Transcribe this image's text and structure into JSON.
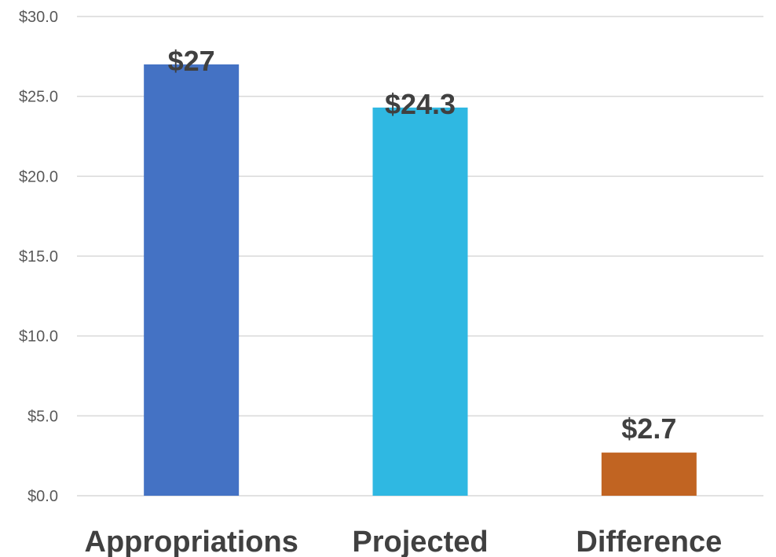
{
  "chart_data": {
    "type": "bar",
    "title": "",
    "xlabel": "",
    "ylabel": "",
    "categories": [
      "Appropriations",
      "Projected",
      "Difference"
    ],
    "values": [
      27,
      24.3,
      2.7
    ],
    "data_labels": [
      "$27",
      "$24.3",
      "$2.7"
    ],
    "bar_colors": [
      "#4472c4",
      "#2fb8e2",
      "#c16422"
    ],
    "ylim": [
      0,
      30
    ],
    "y_ticks": [
      0,
      5,
      10,
      15,
      20,
      25,
      30
    ],
    "y_tick_labels": [
      "$0.0",
      "$5.0",
      "$10.0",
      "$15.0",
      "$20.0",
      "$25.0",
      "$30.0"
    ],
    "grid": true,
    "legend": "none"
  }
}
